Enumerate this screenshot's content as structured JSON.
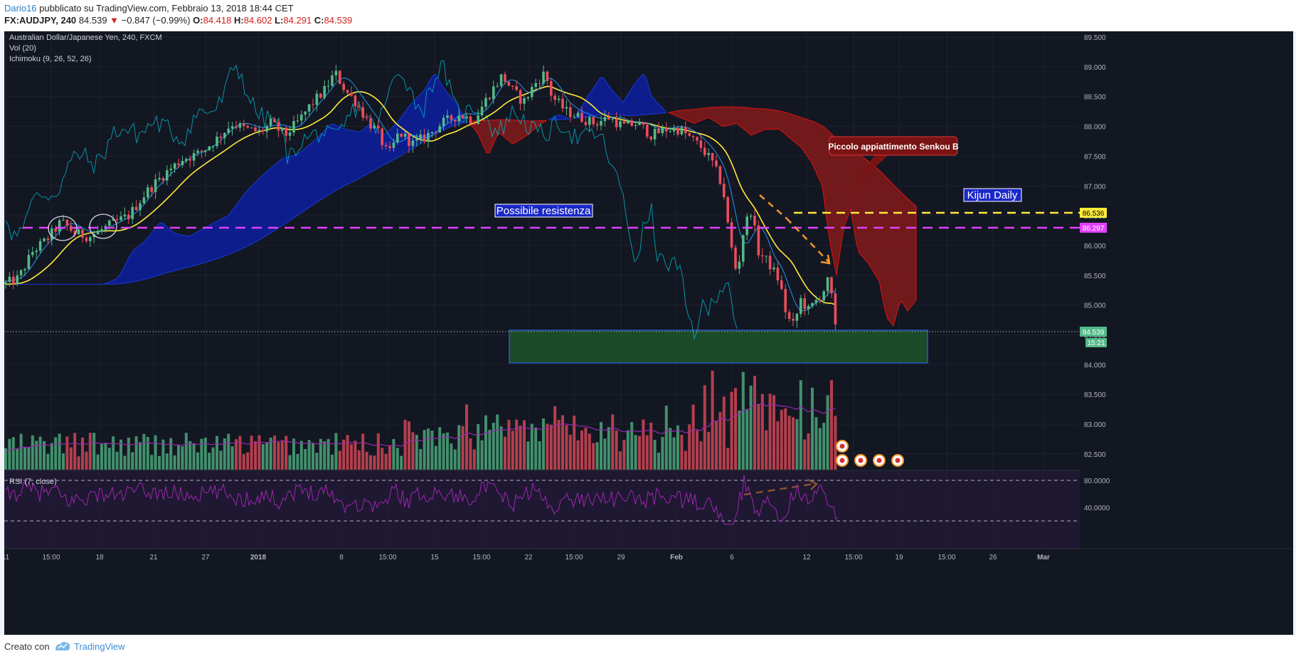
{
  "header": {
    "author": "Dario16",
    "published": "pubblicato su TradingView.com, Febbraio 13, 2018 18:44 CET",
    "symbol": "FX:AUDJPY, 240",
    "last": "84.539",
    "change": "−0.847 (−0.99%)",
    "o_label": "O:",
    "o_val": "84.418",
    "h_label": "H:",
    "h_val": "84.602",
    "l_label": "L:",
    "l_val": "84.291",
    "c_label": "C:",
    "c_val": "84.539"
  },
  "legend": {
    "title": "Australian Dollar/Japanese Yen, 240, FXCM",
    "vol": "Vol (20)",
    "ichimoku": "Ichimoku (9, 26, 52, 26)",
    "rsi": "RSI (7, close)"
  },
  "annotations": {
    "callout": "Piccolo appiattimento Senkou B",
    "resistance": "Possibile resistenza",
    "kijun": "Kijun Daily"
  },
  "price_tags": {
    "kijun_daily": "86.536",
    "magenta_line": "86.297",
    "last_price": "84.539",
    "countdown": "15:21"
  },
  "footer": {
    "created_with": "Creato con",
    "brand": "TradingView"
  },
  "colors": {
    "background": "#131722",
    "up_candle": "#53b987",
    "down_candle": "#eb4d5c",
    "tenkan": "#00bcd4",
    "kijun": "#ffeb3b",
    "kumo_bull": "#0d1fa8",
    "kumo_bear": "#8b1a1a",
    "kijun_daily_line": "#ffeb3b",
    "magenta_line": "#e040fb",
    "support_zone": "#1e5c2a",
    "rsi_line": "#9c27b0"
  },
  "chart_data": {
    "type": "candlestick",
    "symbol": "AUDJPY",
    "ylim": [
      82.2,
      89.7
    ],
    "y_ticks": [
      "89.500",
      "89.000",
      "88.500",
      "88.000",
      "87.500",
      "87.000",
      "86.500",
      "86.000",
      "85.500",
      "85.000",
      "84.500",
      "84.000",
      "83.500",
      "83.000",
      "82.500"
    ],
    "x_ticks": [
      "11",
      "15:00",
      "18",
      "21",
      "27",
      "2018",
      "8",
      "15:00",
      "15",
      "15:00",
      "22",
      "15:00",
      "29",
      "Feb",
      "6",
      "12",
      "15:00",
      "19",
      "15:00",
      "26",
      "Mar"
    ],
    "rsi_ticks": [
      "80.0000",
      "40.0000"
    ],
    "rsi_levels": [
      80,
      30
    ],
    "horizontal_lines": [
      {
        "name": "Kijun Daily",
        "value": 86.536
      },
      {
        "name": "magenta",
        "value": 86.297
      }
    ],
    "support_zone": {
      "from": 84.05,
      "to": 84.6
    },
    "price_path": [
      [
        0,
        85.35
      ],
      [
        20,
        85.45
      ],
      [
        40,
        85.9
      ],
      [
        60,
        86.1
      ],
      [
        80,
        86.4
      ],
      [
        100,
        86.2
      ],
      [
        120,
        86.15
      ],
      [
        150,
        86.35
      ],
      [
        175,
        86.5
      ],
      [
        200,
        86.9
      ],
      [
        225,
        87.2
      ],
      [
        250,
        87.45
      ],
      [
        275,
        87.55
      ],
      [
        300,
        87.8
      ],
      [
        320,
        88.05
      ],
      [
        340,
        87.95
      ],
      [
        360,
        87.9
      ],
      [
        375,
        88.05
      ],
      [
        395,
        87.85
      ],
      [
        415,
        88.1
      ],
      [
        430,
        88.35
      ],
      [
        450,
        88.6
      ],
      [
        465,
        88.9
      ],
      [
        480,
        88.6
      ],
      [
        495,
        88.4
      ],
      [
        510,
        88.1
      ],
      [
        525,
        87.9
      ],
      [
        540,
        87.5
      ],
      [
        555,
        87.9
      ],
      [
        575,
        87.7
      ],
      [
        595,
        87.85
      ],
      [
        615,
        88.05
      ],
      [
        640,
        88.2
      ],
      [
        660,
        88.1
      ],
      [
        680,
        88.5
      ],
      [
        700,
        88.85
      ],
      [
        715,
        88.6
      ],
      [
        730,
        88.4
      ],
      [
        745,
        88.7
      ],
      [
        760,
        88.9
      ],
      [
        770,
        88.5
      ],
      [
        790,
        88.25
      ],
      [
        810,
        88.15
      ],
      [
        830,
        88.05
      ],
      [
        850,
        88.15
      ],
      [
        870,
        88.0
      ],
      [
        890,
        88.05
      ],
      [
        910,
        87.85
      ],
      [
        930,
        87.95
      ],
      [
        950,
        87.95
      ],
      [
        965,
        87.8
      ],
      [
        980,
        87.65
      ],
      [
        995,
        87.4
      ],
      [
        1010,
        87.0
      ],
      [
        1020,
        86.1
      ],
      [
        1030,
        85.5
      ],
      [
        1040,
        86.3
      ],
      [
        1050,
        86.6
      ],
      [
        1060,
        85.9
      ],
      [
        1075,
        85.7
      ],
      [
        1090,
        85.4
      ],
      [
        1100,
        84.8
      ],
      [
        1110,
        84.65
      ],
      [
        1120,
        85.1
      ],
      [
        1130,
        84.9
      ],
      [
        1140,
        85.05
      ],
      [
        1150,
        85.2
      ],
      [
        1160,
        85.45
      ],
      [
        1168,
        84.6
      ],
      [
        1175,
        84.54
      ]
    ],
    "volume_ticks": "relative"
  }
}
